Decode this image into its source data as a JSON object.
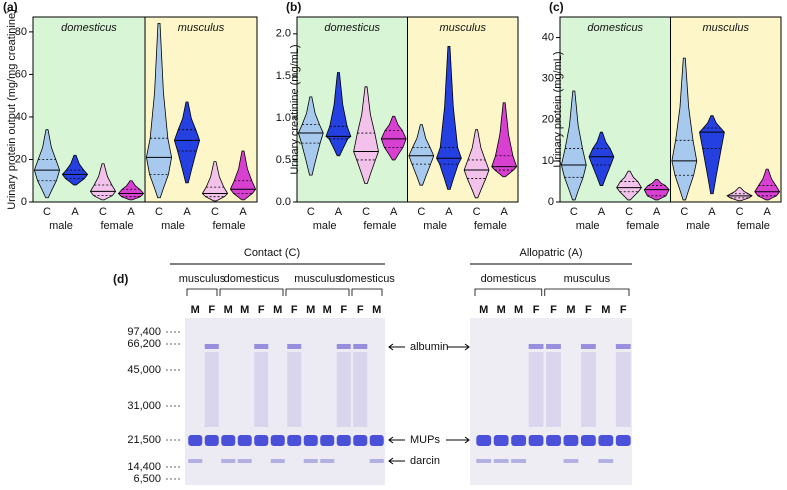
{
  "chart_data": [
    {
      "type": "violin",
      "panel": "(a)",
      "ylabel": "Urinary protein output (mg/mg creatinine)",
      "ylim": [
        0,
        87
      ],
      "yticks": [
        0,
        20,
        40,
        60,
        80
      ],
      "groups": [
        {
          "name": "domesticus",
          "color": "#d8f6d6"
        },
        {
          "name": "musculus",
          "color": "#fdf6c8"
        }
      ],
      "sex_labels": [
        "male",
        "female",
        "male",
        "female"
      ],
      "categories": [
        "C",
        "A",
        "C",
        "A",
        "C",
        "A",
        "C",
        "A"
      ],
      "colors": [
        "#a8c9ee",
        "#2440e0",
        "#f2c2ea",
        "#d840d2",
        "#a8c9ee",
        "#2440e0",
        "#f2c2ea",
        "#d840d2"
      ],
      "stats": {
        "min": [
          2,
          8,
          1,
          1,
          2,
          9,
          0.5,
          1
        ],
        "q1": [
          10,
          11,
          3,
          2.5,
          13,
          24,
          2.5,
          4
        ],
        "median": [
          15,
          13,
          5,
          4,
          21,
          29,
          4,
          6
        ],
        "q3": [
          20,
          15,
          8,
          6,
          30,
          34,
          7,
          10
        ],
        "max": [
          34,
          22,
          18,
          10,
          84,
          47,
          19,
          24
        ]
      }
    },
    {
      "type": "violin",
      "panel": "(b)",
      "ylabel": "Urinary creatinine (mg/mL)",
      "ylim": [
        0,
        2.2
      ],
      "yticks": [
        {
          "value": 0,
          "label": "0.0"
        },
        {
          "value": 0.5,
          "label": "0.5"
        },
        {
          "value": 1,
          "label": "1.0"
        },
        {
          "value": 1.5,
          "label": "1.5"
        },
        {
          "value": 2,
          "label": "2.0"
        }
      ],
      "groups": [
        {
          "name": "domesticus",
          "color": "#d8f6d6"
        },
        {
          "name": "musculus",
          "color": "#fdf6c8"
        }
      ],
      "sex_labels": [
        "male",
        "female",
        "male",
        "female"
      ],
      "categories": [
        "C",
        "A",
        "C",
        "A",
        "C",
        "A",
        "C",
        "A"
      ],
      "colors": [
        "#a8c9ee",
        "#2440e0",
        "#f2c2ea",
        "#d840d2",
        "#a8c9ee",
        "#2440e0",
        "#f2c2ea",
        "#d840d2"
      ],
      "stats": {
        "min": [
          0.32,
          0.55,
          0.22,
          0.5,
          0.2,
          0.15,
          0.05,
          0.3
        ],
        "q1": [
          0.7,
          0.75,
          0.5,
          0.65,
          0.45,
          0.45,
          0.28,
          0.38
        ],
        "median": [
          0.82,
          0.78,
          0.6,
          0.75,
          0.55,
          0.52,
          0.38,
          0.42
        ],
        "q3": [
          0.92,
          0.9,
          0.82,
          0.85,
          0.65,
          0.65,
          0.5,
          0.55
        ],
        "max": [
          1.25,
          1.54,
          1.37,
          1.02,
          0.92,
          1.85,
          0.86,
          1.18
        ]
      }
    },
    {
      "type": "violin",
      "panel": "(c)",
      "ylabel": "Urinary protein (mg/mL)",
      "ylim": [
        0,
        45
      ],
      "yticks": [
        0,
        10,
        20,
        30,
        40
      ],
      "groups": [
        {
          "name": "domesticus",
          "color": "#d8f6d6"
        },
        {
          "name": "musculus",
          "color": "#fdf6c8"
        }
      ],
      "sex_labels": [
        "male",
        "female",
        "male",
        "female"
      ],
      "categories": [
        "C",
        "A",
        "C",
        "A",
        "C",
        "A",
        "C",
        "A"
      ],
      "colors": [
        "#a8c9ee",
        "#2440e0",
        "#f2c2ea",
        "#d840d2",
        "#a8c9ee",
        "#2440e0",
        "#f2c2ea",
        "#d840d2"
      ],
      "stats": {
        "min": [
          0.5,
          4,
          0.5,
          0.5,
          0.5,
          2,
          0.3,
          0.5
        ],
        "q1": [
          6,
          9,
          2.5,
          1.5,
          6.5,
          13,
          1,
          1.5
        ],
        "median": [
          9,
          11,
          3.5,
          3,
          10,
          17,
          1.5,
          2.5
        ],
        "q3": [
          13,
          13,
          5,
          4,
          15,
          18,
          2,
          4
        ],
        "max": [
          27,
          17,
          7.5,
          5.5,
          35,
          21,
          3.5,
          8
        ]
      }
    }
  ],
  "gel": {
    "label": "(d)",
    "contact": {
      "title": "Contact (C)",
      "groups": [
        {
          "name": "musculus",
          "lanes": [
            "M",
            "F"
          ]
        },
        {
          "name": "domesticus",
          "lanes": [
            "M",
            "M",
            "F",
            "M"
          ]
        },
        {
          "name": "musculus",
          "lanes": [
            "F",
            "M",
            "M",
            "F"
          ]
        },
        {
          "name": "domesticus",
          "lanes": [
            "F",
            "M"
          ]
        }
      ]
    },
    "allopatric": {
      "title": "Allopatric (A)",
      "groups": [
        {
          "name": "domesticus",
          "lanes": [
            "M",
            "M",
            "M",
            "F"
          ]
        },
        {
          "name": "musculus",
          "lanes": [
            "F",
            "M",
            "F",
            "M",
            "F"
          ]
        }
      ]
    },
    "mw_markers": [
      "97,400",
      "66,200",
      "45,000",
      "31,000",
      "21,500",
      "14,400",
      "6,500"
    ],
    "bands": [
      "albumin",
      "MUPs",
      "darcin"
    ]
  }
}
